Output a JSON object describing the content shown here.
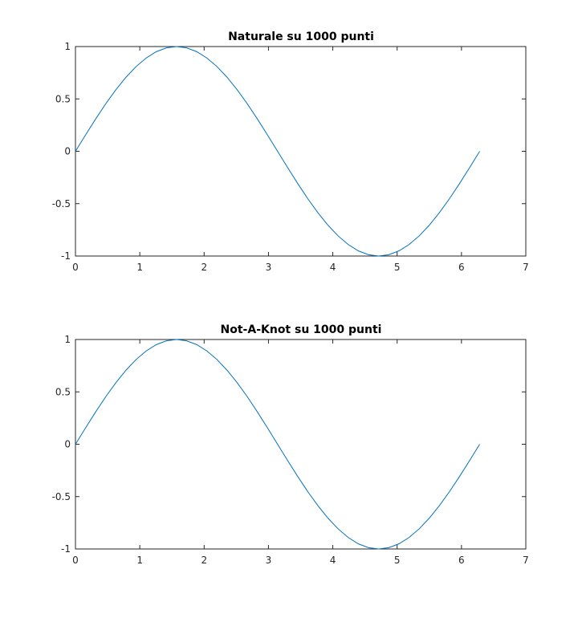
{
  "chart_data": [
    {
      "type": "line",
      "title": "Naturale su 1000 punti",
      "xlabel": "",
      "ylabel": "",
      "xlim": [
        0,
        7
      ],
      "ylim": [
        -1,
        1
      ],
      "xticks": [
        0,
        1,
        2,
        3,
        4,
        5,
        6,
        7
      ],
      "yticks": [
        -1,
        -0.5,
        0,
        0.5,
        1
      ],
      "xtick_labels": [
        "0",
        "1",
        "2",
        "3",
        "4",
        "5",
        "6",
        "7"
      ],
      "ytick_labels": [
        "-1",
        "-0.5",
        "0",
        "0.5",
        "1"
      ],
      "grid": false,
      "legend": "none",
      "series": [
        {
          "color": "#0072bd",
          "x": [
            0,
            0.1571,
            0.3142,
            0.4712,
            0.6283,
            0.7854,
            0.9425,
            1.0996,
            1.2566,
            1.4137,
            1.5708,
            1.7279,
            1.885,
            2.042,
            2.1991,
            2.3562,
            2.5133,
            2.6704,
            2.8274,
            2.9845,
            3.1416,
            3.2987,
            3.4558,
            3.6128,
            3.7699,
            3.927,
            4.0841,
            4.2412,
            4.3982,
            4.5553,
            4.7124,
            4.8695,
            5.0265,
            5.1836,
            5.3407,
            5.4978,
            5.6549,
            5.8119,
            5.969,
            6.1261,
            6.2832
          ],
          "y": [
            0,
            0.1564,
            0.309,
            0.454,
            0.5878,
            0.7071,
            0.809,
            0.891,
            0.9511,
            0.9877,
            1,
            0.9877,
            0.9511,
            0.891,
            0.809,
            0.7071,
            0.5878,
            0.454,
            0.309,
            0.1564,
            0,
            -0.1564,
            -0.309,
            -0.454,
            -0.5878,
            -0.7071,
            -0.809,
            -0.891,
            -0.9511,
            -0.9877,
            -1,
            -0.9877,
            -0.9511,
            -0.891,
            -0.809,
            -0.7071,
            -0.5878,
            -0.454,
            -0.309,
            -0.1564,
            0
          ]
        }
      ]
    },
    {
      "type": "line",
      "title": "Not-A-Knot su 1000 punti",
      "xlabel": "",
      "ylabel": "",
      "xlim": [
        0,
        7
      ],
      "ylim": [
        -1,
        1
      ],
      "xticks": [
        0,
        1,
        2,
        3,
        4,
        5,
        6,
        7
      ],
      "yticks": [
        -1,
        -0.5,
        0,
        0.5,
        1
      ],
      "xtick_labels": [
        "0",
        "1",
        "2",
        "3",
        "4",
        "5",
        "6",
        "7"
      ],
      "ytick_labels": [
        "-1",
        "-0.5",
        "0",
        "0.5",
        "1"
      ],
      "grid": false,
      "legend": "none",
      "series": [
        {
          "color": "#0072bd",
          "x": [
            0,
            0.1571,
            0.3142,
            0.4712,
            0.6283,
            0.7854,
            0.9425,
            1.0996,
            1.2566,
            1.4137,
            1.5708,
            1.7279,
            1.885,
            2.042,
            2.1991,
            2.3562,
            2.5133,
            2.6704,
            2.8274,
            2.9845,
            3.1416,
            3.2987,
            3.4558,
            3.6128,
            3.7699,
            3.927,
            4.0841,
            4.2412,
            4.3982,
            4.5553,
            4.7124,
            4.8695,
            5.0265,
            5.1836,
            5.3407,
            5.4978,
            5.6549,
            5.8119,
            5.969,
            6.1261,
            6.2832
          ],
          "y": [
            0,
            0.1564,
            0.309,
            0.454,
            0.5878,
            0.7071,
            0.809,
            0.891,
            0.9511,
            0.9877,
            1,
            0.9877,
            0.9511,
            0.891,
            0.809,
            0.7071,
            0.5878,
            0.454,
            0.309,
            0.1564,
            0,
            -0.1564,
            -0.309,
            -0.454,
            -0.5878,
            -0.7071,
            -0.809,
            -0.891,
            -0.9511,
            -0.9877,
            -1,
            -0.9877,
            -0.9511,
            -0.891,
            -0.809,
            -0.7071,
            -0.5878,
            -0.454,
            -0.309,
            -0.1564,
            0
          ]
        }
      ]
    }
  ]
}
